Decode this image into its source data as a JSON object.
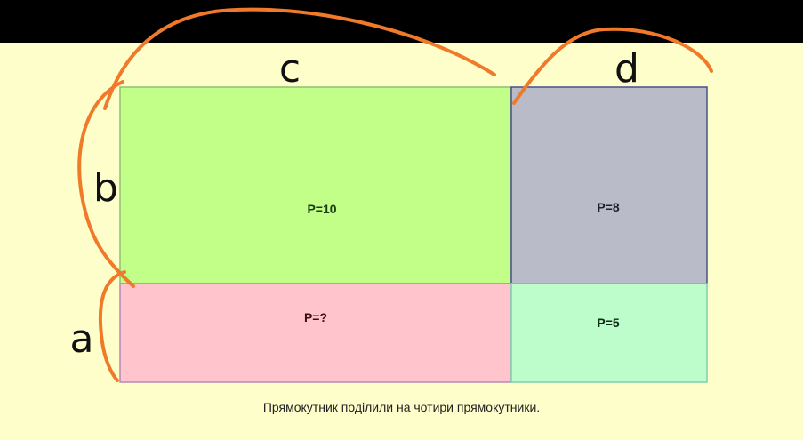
{
  "diagram": {
    "rectangles": [
      {
        "id": "top-left",
        "label": "P=10",
        "color": "#c2ff88"
      },
      {
        "id": "top-right",
        "label": "P=8",
        "color": "#b9bbc9"
      },
      {
        "id": "bottom-left",
        "label": "P=?",
        "color": "#ffc4cc"
      },
      {
        "id": "bottom-right",
        "label": "P=5",
        "color": "#bdfccb"
      }
    ],
    "side_labels": {
      "c": "c",
      "d": "d",
      "b": "b",
      "a": "a"
    },
    "annotation_color": "#f07a2a",
    "caption": "Прямокутник поділили на чотири прямокутники."
  }
}
